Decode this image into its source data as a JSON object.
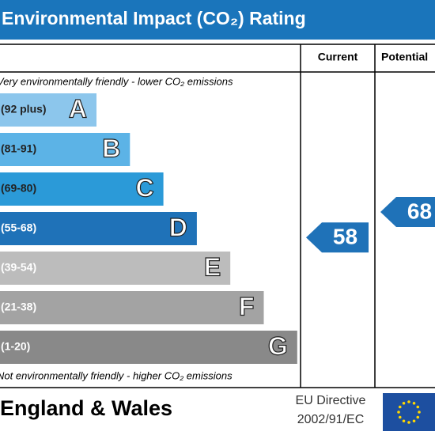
{
  "chart_data": {
    "type": "epc",
    "title": "Environmental Impact (CO₂) Rating",
    "column_headers": [
      "Current",
      "Potential"
    ],
    "top_note": "Very environmentally friendly - lower CO₂ emissions",
    "bottom_note": "Not environmentally friendly - higher CO₂ emissions",
    "bands": [
      {
        "range": "(92 plus)",
        "letter": "A",
        "color": "#8cc6ec"
      },
      {
        "range": "(81-91)",
        "letter": "B",
        "color": "#5cb3e6"
      },
      {
        "range": "(69-80)",
        "letter": "C",
        "color": "#2b9ad8"
      },
      {
        "range": "(55-68)",
        "letter": "D",
        "color": "#1f72b8"
      },
      {
        "range": "(39-54)",
        "letter": "E",
        "color": "#bcbcbc"
      },
      {
        "range": "(21-38)",
        "letter": "F",
        "color": "#a3a3a3"
      },
      {
        "range": "(1-20)",
        "letter": "G",
        "color": "#898989"
      }
    ],
    "current": 58,
    "potential": 68,
    "arrow_color": "#1f72b8",
    "region": "England & Wales",
    "directive": [
      "EU Directive",
      "2002/91/EC"
    ]
  }
}
